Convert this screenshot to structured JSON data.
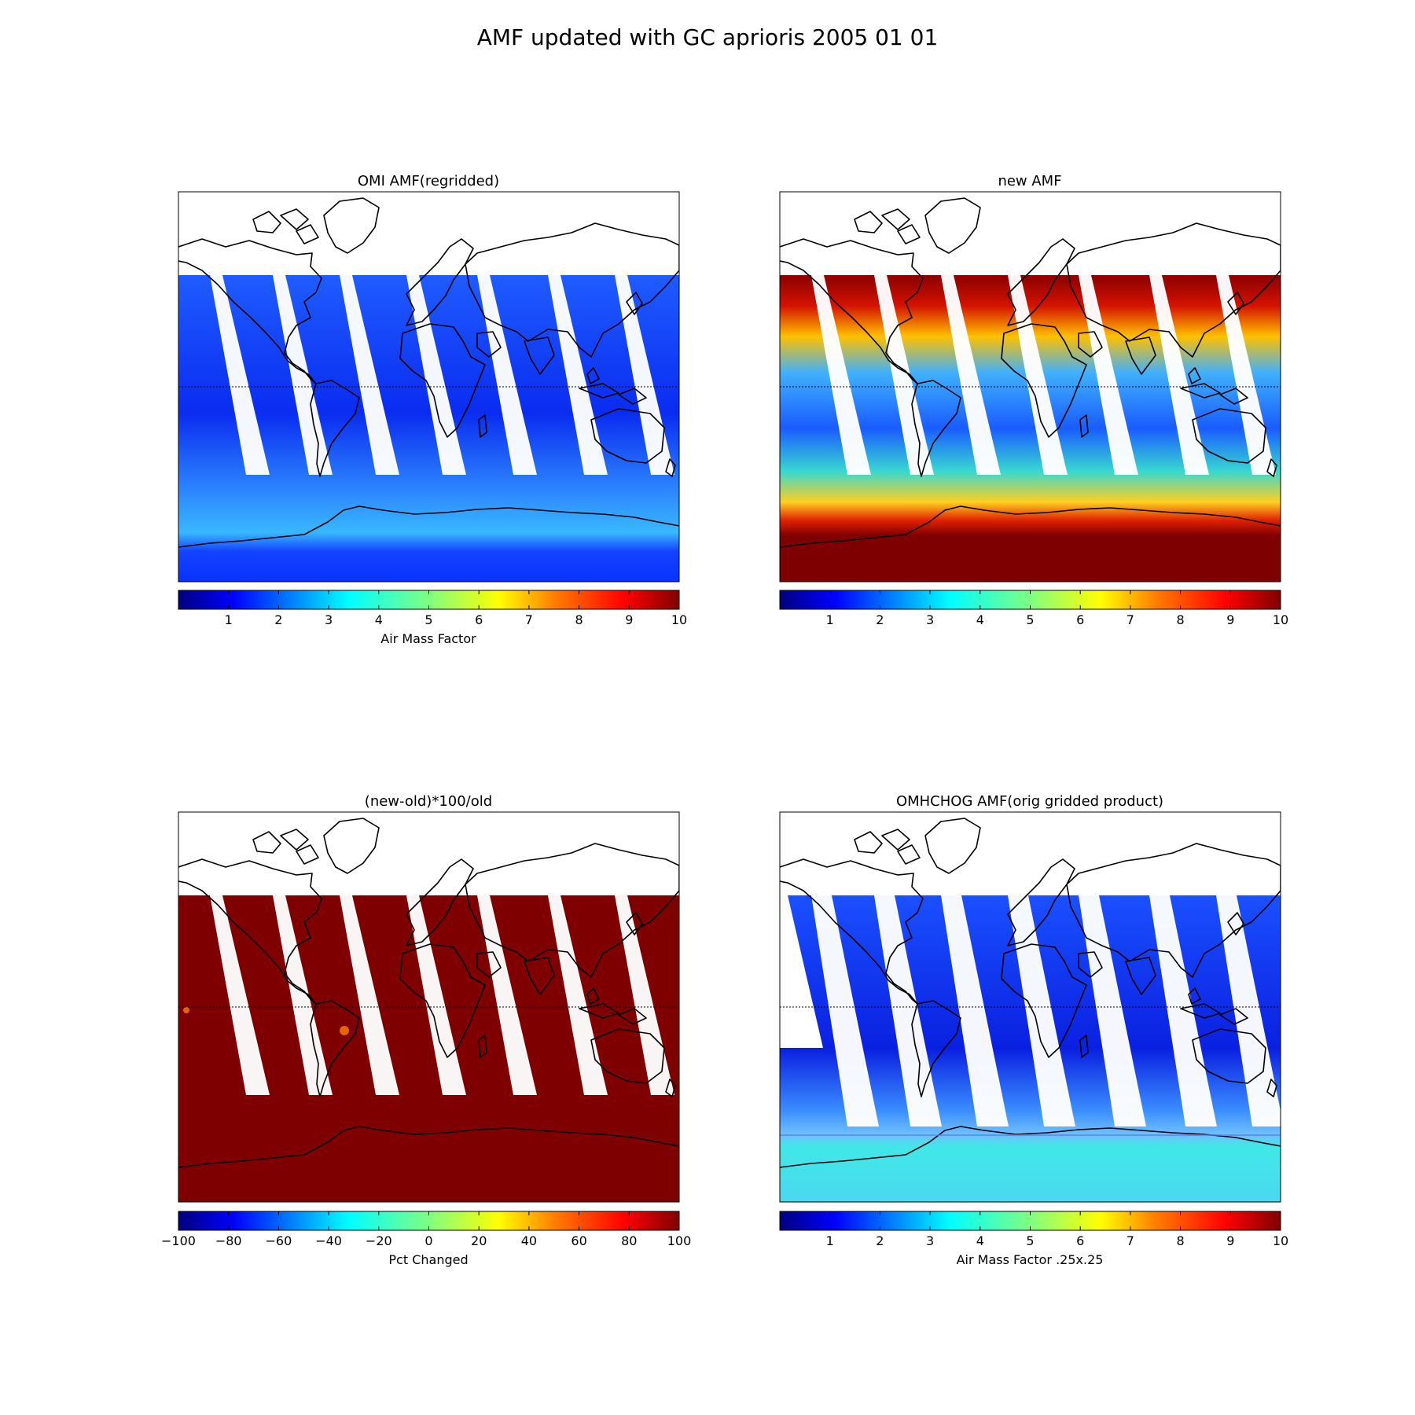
{
  "figure": {
    "title": "AMF updated with GC aprioris 2005 01 01"
  },
  "colormap": {
    "name": "jet",
    "stops": [
      "#00007f",
      "#0000ff",
      "#007fff",
      "#00ffff",
      "#7fff7f",
      "#ffff00",
      "#ff7f00",
      "#ff0000",
      "#7f0000"
    ]
  },
  "colors": {
    "swath_gap": "#ffffff",
    "coastline": "#000000",
    "equator_line": "#000000"
  },
  "panels": [
    {
      "title": "OMI AMF(regridded)",
      "colorbar": {
        "label": "Air Mass Factor",
        "range": [
          0,
          10
        ],
        "ticks": [
          "1",
          "2",
          "3",
          "4",
          "5",
          "6",
          "7",
          "8",
          "9",
          "10"
        ],
        "tick_values": [
          1,
          2,
          3,
          4,
          5,
          6,
          7,
          8,
          9,
          10
        ]
      }
    },
    {
      "title": "new AMF",
      "colorbar": {
        "label": "",
        "range": [
          0,
          10
        ],
        "ticks": [
          "1",
          "2",
          "3",
          "4",
          "5",
          "6",
          "7",
          "8",
          "9",
          "10"
        ],
        "tick_values": [
          1,
          2,
          3,
          4,
          5,
          6,
          7,
          8,
          9,
          10
        ]
      }
    },
    {
      "title": "(new-old)*100/old",
      "colorbar": {
        "label": "Pct Changed",
        "range": [
          -100,
          100
        ],
        "ticks": [
          "−100",
          "−80",
          "−60",
          "−40",
          "−20",
          "0",
          "20",
          "40",
          "60",
          "80",
          "100"
        ],
        "tick_values": [
          -100,
          -80,
          -60,
          -40,
          -20,
          0,
          20,
          40,
          60,
          80,
          100
        ]
      }
    },
    {
      "title": "OMHCHOG AMF(orig gridded product)",
      "colorbar": {
        "label": "Air Mass Factor .25x.25",
        "range": [
          0,
          10
        ],
        "ticks": [
          "1",
          "2",
          "3",
          "4",
          "5",
          "6",
          "7",
          "8",
          "9",
          "10"
        ],
        "tick_values": [
          1,
          2,
          3,
          4,
          5,
          6,
          7,
          8,
          9,
          10
        ]
      }
    }
  ]
}
